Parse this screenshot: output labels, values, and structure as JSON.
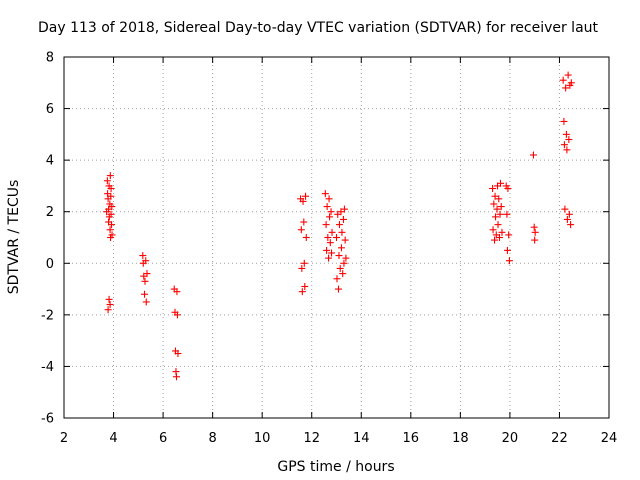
{
  "chart_data": {
    "type": "scatter",
    "title": "Day 113 of 2018, Sidereal Day-to-day VTEC variation (SDTVAR) for receiver laut",
    "xlabel": "GPS time / hours",
    "ylabel": "SDTVAR / TECUs",
    "xlim": [
      2,
      24
    ],
    "ylim": [
      -6,
      8
    ],
    "x_ticks": [
      "2",
      "4",
      "6",
      "8",
      "10",
      "12",
      "14",
      "16",
      "18",
      "20",
      "22",
      "24"
    ],
    "y_ticks": [
      "-6",
      "-4",
      "-2",
      "0",
      "2",
      "4",
      "6",
      "8"
    ],
    "grid": true,
    "marker": "+",
    "series": [
      {
        "name": "SDTVAR",
        "color": "#ff0000",
        "points": [
          [
            3.72,
            2.0
          ],
          [
            3.75,
            3.2
          ],
          [
            3.76,
            2.7
          ],
          [
            3.78,
            2.5
          ],
          [
            3.8,
            1.6
          ],
          [
            3.8,
            2.1
          ],
          [
            3.82,
            3.0
          ],
          [
            3.83,
            1.8
          ],
          [
            3.85,
            2.3
          ],
          [
            3.86,
            1.3
          ],
          [
            3.87,
            3.4
          ],
          [
            3.88,
            1.0
          ],
          [
            3.89,
            2.6
          ],
          [
            3.9,
            1.9
          ],
          [
            3.9,
            2.9
          ],
          [
            3.92,
            1.5
          ],
          [
            3.93,
            2.2
          ],
          [
            3.94,
            1.1
          ],
          [
            3.78,
            -1.8
          ],
          [
            3.82,
            -1.4
          ],
          [
            3.86,
            -1.6
          ],
          [
            5.18,
            0.3
          ],
          [
            5.2,
            0.0
          ],
          [
            5.22,
            -0.5
          ],
          [
            5.25,
            -1.2
          ],
          [
            5.27,
            -0.7
          ],
          [
            5.3,
            0.1
          ],
          [
            5.32,
            -1.5
          ],
          [
            5.35,
            -0.4
          ],
          [
            6.45,
            -1.0
          ],
          [
            6.48,
            -1.9
          ],
          [
            6.5,
            -3.4
          ],
          [
            6.52,
            -4.2
          ],
          [
            6.54,
            -4.4
          ],
          [
            6.56,
            -1.1
          ],
          [
            6.58,
            -2.0
          ],
          [
            6.6,
            -3.5
          ],
          [
            11.55,
            2.5
          ],
          [
            11.58,
            1.3
          ],
          [
            11.6,
            -0.2
          ],
          [
            11.62,
            -1.1
          ],
          [
            11.65,
            2.4
          ],
          [
            11.68,
            1.6
          ],
          [
            11.7,
            0.0
          ],
          [
            11.72,
            -0.9
          ],
          [
            11.75,
            2.6
          ],
          [
            11.78,
            1.0
          ],
          [
            12.55,
            2.7
          ],
          [
            12.58,
            1.5
          ],
          [
            12.6,
            0.5
          ],
          [
            12.62,
            2.2
          ],
          [
            12.65,
            1.0
          ],
          [
            12.68,
            0.2
          ],
          [
            12.7,
            2.5
          ],
          [
            12.72,
            1.8
          ],
          [
            12.75,
            0.8
          ],
          [
            12.78,
            2.0
          ],
          [
            12.8,
            0.4
          ],
          [
            12.82,
            1.2
          ],
          [
            13.0,
            1.0
          ],
          [
            13.02,
            -0.6
          ],
          [
            13.05,
            1.9
          ],
          [
            13.08,
            -1.0
          ],
          [
            13.1,
            0.3
          ],
          [
            13.12,
            1.5
          ],
          [
            13.15,
            -0.2
          ],
          [
            13.18,
            2.0
          ],
          [
            13.2,
            0.6
          ],
          [
            13.22,
            1.2
          ],
          [
            13.25,
            -0.4
          ],
          [
            13.28,
            1.7
          ],
          [
            13.3,
            0.0
          ],
          [
            13.32,
            2.1
          ],
          [
            13.35,
            0.9
          ],
          [
            13.38,
            0.2
          ],
          [
            19.3,
            2.9
          ],
          [
            19.32,
            1.3
          ],
          [
            19.35,
            2.3
          ],
          [
            19.38,
            0.9
          ],
          [
            19.4,
            2.6
          ],
          [
            19.42,
            1.8
          ],
          [
            19.45,
            1.1
          ],
          [
            19.48,
            2.1
          ],
          [
            19.5,
            3.0
          ],
          [
            19.52,
            1.5
          ],
          [
            19.55,
            2.5
          ],
          [
            19.58,
            1.0
          ],
          [
            19.6,
            1.9
          ],
          [
            19.62,
            3.1
          ],
          [
            19.65,
            2.2
          ],
          [
            19.68,
            1.2
          ],
          [
            19.85,
            3.0
          ],
          [
            19.88,
            1.9
          ],
          [
            19.9,
            0.5
          ],
          [
            19.92,
            2.9
          ],
          [
            19.95,
            1.1
          ],
          [
            19.98,
            0.1
          ],
          [
            20.95,
            4.2
          ],
          [
            20.98,
            1.4
          ],
          [
            21.0,
            0.9
          ],
          [
            21.02,
            1.2
          ],
          [
            22.15,
            7.1
          ],
          [
            22.18,
            5.5
          ],
          [
            22.2,
            4.6
          ],
          [
            22.22,
            2.1
          ],
          [
            22.25,
            6.8
          ],
          [
            22.28,
            5.0
          ],
          [
            22.3,
            4.4
          ],
          [
            22.32,
            1.7
          ],
          [
            22.35,
            7.3
          ],
          [
            22.38,
            4.8
          ],
          [
            22.4,
            1.9
          ],
          [
            22.42,
            6.9
          ],
          [
            22.45,
            1.5
          ],
          [
            22.48,
            7.0
          ]
        ]
      }
    ]
  }
}
